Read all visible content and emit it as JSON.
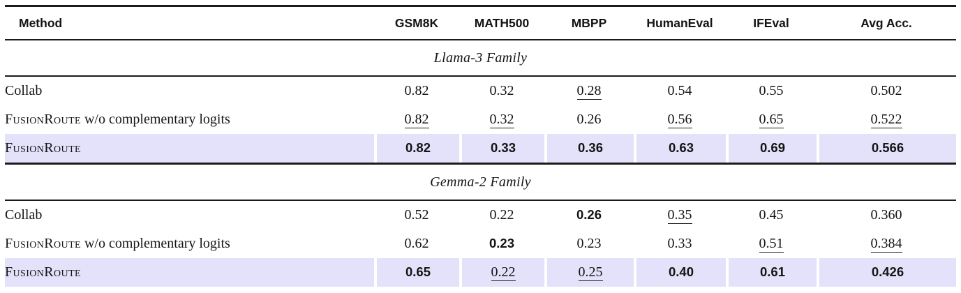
{
  "table": {
    "columns": [
      "Method",
      "GSM8K",
      "MATH500",
      "MBPP",
      "HumanEval",
      "IFEval",
      "Avg Acc."
    ],
    "colors": {
      "highlight": "#e3e2fa",
      "rule": "#1b1b1b",
      "text": "#141414"
    },
    "sections": [
      {
        "title": "Llama-3 Family",
        "rows": [
          {
            "method": {
              "brand": "",
              "rest": "Collab"
            },
            "highlight": false,
            "values": [
              {
                "text": "0.82",
                "style": "plain"
              },
              {
                "text": "0.32",
                "style": "plain"
              },
              {
                "text": "0.28",
                "style": "underline"
              },
              {
                "text": "0.54",
                "style": "plain"
              },
              {
                "text": "0.55",
                "style": "plain"
              },
              {
                "text": "0.502",
                "style": "plain"
              }
            ]
          },
          {
            "method": {
              "brand": "FusionRoute",
              "rest": " w/o complementary logits"
            },
            "highlight": false,
            "values": [
              {
                "text": "0.82",
                "style": "underline"
              },
              {
                "text": "0.32",
                "style": "underline"
              },
              {
                "text": "0.26",
                "style": "plain"
              },
              {
                "text": "0.56",
                "style": "underline"
              },
              {
                "text": "0.65",
                "style": "underline"
              },
              {
                "text": "0.522",
                "style": "underline"
              }
            ]
          },
          {
            "method": {
              "brand": "FusionRoute",
              "rest": ""
            },
            "highlight": true,
            "values": [
              {
                "text": "0.82",
                "style": "bold"
              },
              {
                "text": "0.33",
                "style": "bold"
              },
              {
                "text": "0.36",
                "style": "bold"
              },
              {
                "text": "0.63",
                "style": "bold"
              },
              {
                "text": "0.69",
                "style": "bold"
              },
              {
                "text": "0.566",
                "style": "bold"
              }
            ]
          }
        ]
      },
      {
        "title": "Gemma-2 Family",
        "rows": [
          {
            "method": {
              "brand": "",
              "rest": "Collab"
            },
            "highlight": false,
            "values": [
              {
                "text": "0.52",
                "style": "plain"
              },
              {
                "text": "0.22",
                "style": "plain"
              },
              {
                "text": "0.26",
                "style": "bold"
              },
              {
                "text": "0.35",
                "style": "underline"
              },
              {
                "text": "0.45",
                "style": "plain"
              },
              {
                "text": "0.360",
                "style": "plain"
              }
            ]
          },
          {
            "method": {
              "brand": "FusionRoute",
              "rest": " w/o complementary logits"
            },
            "highlight": false,
            "values": [
              {
                "text": "0.62",
                "style": "plain"
              },
              {
                "text": "0.23",
                "style": "bold"
              },
              {
                "text": "0.23",
                "style": "plain"
              },
              {
                "text": "0.33",
                "style": "plain"
              },
              {
                "text": "0.51",
                "style": "underline"
              },
              {
                "text": "0.384",
                "style": "underline"
              }
            ]
          },
          {
            "method": {
              "brand": "FusionRoute",
              "rest": ""
            },
            "highlight": true,
            "values": [
              {
                "text": "0.65",
                "style": "bold"
              },
              {
                "text": "0.22",
                "style": "underline"
              },
              {
                "text": "0.25",
                "style": "underline"
              },
              {
                "text": "0.40",
                "style": "bold"
              },
              {
                "text": "0.61",
                "style": "bold"
              },
              {
                "text": "0.426",
                "style": "bold"
              }
            ]
          }
        ]
      }
    ]
  }
}
